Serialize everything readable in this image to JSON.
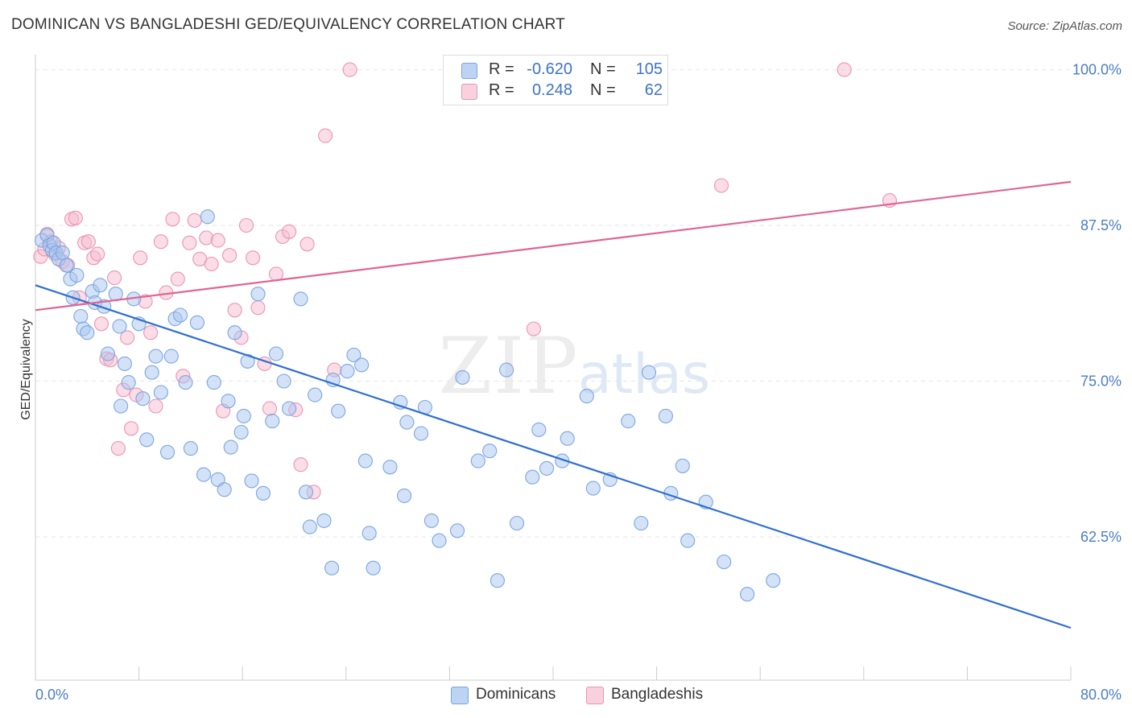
{
  "header": {
    "title": "DOMINICAN VS BANGLADESHI GED/EQUIVALENCY CORRELATION CHART",
    "source": "Source: ZipAtlas.com"
  },
  "watermark": {
    "zip": "ZIP",
    "atlas": "atlas"
  },
  "legend_top": {
    "rows": [
      {
        "r_label": "R =",
        "r_value": "-0.620",
        "n_label": "N =",
        "n_value": "105"
      },
      {
        "r_label": "R =",
        "r_value": "0.248",
        "n_label": "N =",
        "n_value": "62"
      }
    ]
  },
  "legend_bottom": {
    "items": [
      "Dominicans",
      "Bangladeshis"
    ]
  },
  "colors": {
    "blue_fill": "#a9c6ef",
    "blue_stroke": "#7aa6e0",
    "blue_line": "#2f6fd0",
    "pink_fill": "#f5bcd0",
    "pink_stroke": "#ec94b2",
    "pink_line": "#e06592",
    "tick_label": "#4a7cc9",
    "grid": "#e6e6e6"
  },
  "chart_data": {
    "type": "scatter",
    "title": "DOMINICAN VS BANGLADESHI GED/EQUIVALENCY CORRELATION CHART",
    "xlabel": "",
    "ylabel": "GED/Equivalency",
    "xlim": [
      0,
      80
    ],
    "ylim": [
      51,
      101.2
    ],
    "x_tick_labels": [
      "0.0%",
      "80.0%"
    ],
    "y_ticks": [
      62.5,
      75.0,
      87.5,
      100.0
    ],
    "y_tick_labels": [
      "62.5%",
      "75.0%",
      "87.5%",
      "100.0%"
    ],
    "grid": "horizontal dashed",
    "legend_placement": "bottom-center",
    "series": [
      {
        "name": "Dominicans",
        "color": "#a9c6ef",
        "R": -0.62,
        "N": 105,
        "trend": {
          "x": [
            0,
            80
          ],
          "y": [
            82.7,
            55.2
          ]
        },
        "points": [
          [
            0.5,
            86.3
          ],
          [
            0.9,
            86.7
          ],
          [
            1.1,
            85.9
          ],
          [
            1.3,
            85.5
          ],
          [
            1.4,
            86.1
          ],
          [
            1.6,
            85.3
          ],
          [
            1.8,
            84.8
          ],
          [
            2.1,
            85.3
          ],
          [
            2.4,
            84.3
          ],
          [
            2.7,
            83.2
          ],
          [
            2.9,
            81.7
          ],
          [
            3.2,
            83.5
          ],
          [
            3.5,
            80.2
          ],
          [
            3.7,
            79.2
          ],
          [
            4.0,
            78.9
          ],
          [
            4.4,
            82.2
          ],
          [
            4.6,
            81.3
          ],
          [
            5.0,
            82.7
          ],
          [
            5.3,
            81.0
          ],
          [
            5.6,
            77.2
          ],
          [
            6.2,
            82.0
          ],
          [
            6.5,
            79.4
          ],
          [
            6.9,
            76.4
          ],
          [
            7.2,
            74.9
          ],
          [
            7.6,
            81.6
          ],
          [
            8.0,
            79.6
          ],
          [
            8.3,
            73.6
          ],
          [
            8.6,
            70.3
          ],
          [
            9.0,
            75.7
          ],
          [
            9.3,
            77.0
          ],
          [
            9.7,
            74.1
          ],
          [
            10.2,
            69.3
          ],
          [
            10.8,
            80.0
          ],
          [
            11.2,
            80.3
          ],
          [
            11.6,
            74.9
          ],
          [
            12.0,
            69.6
          ],
          [
            12.5,
            79.7
          ],
          [
            13.0,
            67.5
          ],
          [
            13.3,
            88.2
          ],
          [
            13.8,
            74.9
          ],
          [
            14.1,
            67.1
          ],
          [
            14.6,
            66.3
          ],
          [
            15.1,
            69.7
          ],
          [
            15.4,
            78.9
          ],
          [
            15.9,
            70.9
          ],
          [
            16.1,
            72.2
          ],
          [
            16.7,
            67.0
          ],
          [
            17.2,
            82.0
          ],
          [
            17.6,
            66.0
          ],
          [
            18.3,
            71.8
          ],
          [
            19.2,
            75.0
          ],
          [
            19.6,
            72.8
          ],
          [
            20.5,
            81.6
          ],
          [
            21.2,
            63.3
          ],
          [
            22.3,
            63.8
          ],
          [
            22.9,
            60.0
          ],
          [
            23.4,
            72.6
          ],
          [
            24.1,
            75.8
          ],
          [
            24.6,
            77.1
          ],
          [
            25.2,
            76.3
          ],
          [
            25.8,
            62.8
          ],
          [
            26.1,
            60.0
          ],
          [
            27.4,
            68.1
          ],
          [
            28.2,
            73.3
          ],
          [
            28.7,
            71.7
          ],
          [
            29.8,
            70.8
          ],
          [
            30.6,
            63.8
          ],
          [
            31.2,
            62.2
          ],
          [
            33.0,
            75.3
          ],
          [
            34.2,
            68.6
          ],
          [
            35.1,
            69.4
          ],
          [
            35.7,
            59.0
          ],
          [
            37.2,
            63.6
          ],
          [
            38.4,
            67.3
          ],
          [
            39.5,
            68.0
          ],
          [
            41.1,
            70.4
          ],
          [
            42.6,
            73.8
          ],
          [
            44.4,
            67.1
          ],
          [
            47.4,
            75.7
          ],
          [
            48.7,
            72.2
          ],
          [
            50.0,
            68.2
          ],
          [
            50.4,
            62.2
          ],
          [
            51.8,
            65.3
          ],
          [
            55.0,
            57.9
          ],
          [
            57.0,
            59.0
          ],
          [
            6.6,
            73.0
          ],
          [
            10.5,
            77.0
          ],
          [
            14.9,
            73.4
          ],
          [
            16.4,
            76.6
          ],
          [
            18.6,
            77.2
          ],
          [
            20.9,
            66.1
          ],
          [
            21.6,
            73.9
          ],
          [
            23.0,
            75.1
          ],
          [
            25.5,
            68.6
          ],
          [
            28.5,
            65.8
          ],
          [
            30.1,
            72.9
          ],
          [
            32.6,
            63.0
          ],
          [
            36.4,
            75.9
          ],
          [
            38.9,
            71.1
          ],
          [
            40.7,
            68.6
          ],
          [
            43.1,
            66.4
          ],
          [
            45.8,
            71.8
          ],
          [
            46.8,
            63.6
          ],
          [
            49.1,
            66.0
          ],
          [
            53.2,
            60.5
          ]
        ]
      },
      {
        "name": "Bangladeshis",
        "color": "#f5bcd0",
        "R": 0.248,
        "N": 62,
        "trend": {
          "x": [
            0,
            80
          ],
          "y": [
            80.7,
            91.0
          ]
        },
        "points": [
          [
            0.4,
            85.0
          ],
          [
            0.7,
            85.6
          ],
          [
            0.9,
            86.8
          ],
          [
            1.2,
            86.2
          ],
          [
            1.5,
            85.2
          ],
          [
            1.8,
            85.7
          ],
          [
            2.1,
            84.6
          ],
          [
            2.5,
            84.3
          ],
          [
            2.8,
            88.0
          ],
          [
            3.1,
            88.1
          ],
          [
            3.4,
            81.7
          ],
          [
            3.8,
            86.1
          ],
          [
            4.1,
            86.2
          ],
          [
            4.5,
            84.9
          ],
          [
            4.8,
            85.2
          ],
          [
            5.1,
            79.6
          ],
          [
            5.5,
            76.8
          ],
          [
            5.8,
            76.7
          ],
          [
            6.1,
            83.3
          ],
          [
            6.4,
            69.6
          ],
          [
            6.8,
            74.3
          ],
          [
            7.1,
            78.5
          ],
          [
            7.4,
            71.2
          ],
          [
            7.8,
            73.9
          ],
          [
            8.1,
            84.9
          ],
          [
            8.5,
            81.4
          ],
          [
            8.9,
            78.9
          ],
          [
            9.3,
            73.0
          ],
          [
            9.7,
            86.2
          ],
          [
            10.1,
            82.1
          ],
          [
            10.6,
            88.0
          ],
          [
            11.0,
            83.2
          ],
          [
            11.4,
            75.4
          ],
          [
            11.9,
            86.1
          ],
          [
            12.3,
            87.9
          ],
          [
            12.7,
            84.8
          ],
          [
            13.2,
            86.5
          ],
          [
            13.6,
            84.4
          ],
          [
            14.1,
            86.3
          ],
          [
            14.5,
            72.6
          ],
          [
            15.0,
            85.1
          ],
          [
            15.4,
            80.7
          ],
          [
            15.9,
            78.5
          ],
          [
            16.3,
            87.5
          ],
          [
            16.8,
            84.9
          ],
          [
            17.2,
            80.9
          ],
          [
            17.7,
            76.4
          ],
          [
            18.1,
            72.8
          ],
          [
            18.6,
            83.6
          ],
          [
            19.1,
            86.6
          ],
          [
            19.6,
            87.0
          ],
          [
            20.1,
            72.7
          ],
          [
            20.5,
            68.3
          ],
          [
            21.0,
            86.0
          ],
          [
            21.5,
            66.1
          ],
          [
            22.4,
            94.7
          ],
          [
            23.1,
            75.9
          ],
          [
            24.3,
            100.0
          ],
          [
            38.5,
            79.2
          ],
          [
            53.0,
            90.7
          ],
          [
            62.5,
            100.0
          ],
          [
            66.0,
            89.5
          ]
        ]
      }
    ]
  }
}
